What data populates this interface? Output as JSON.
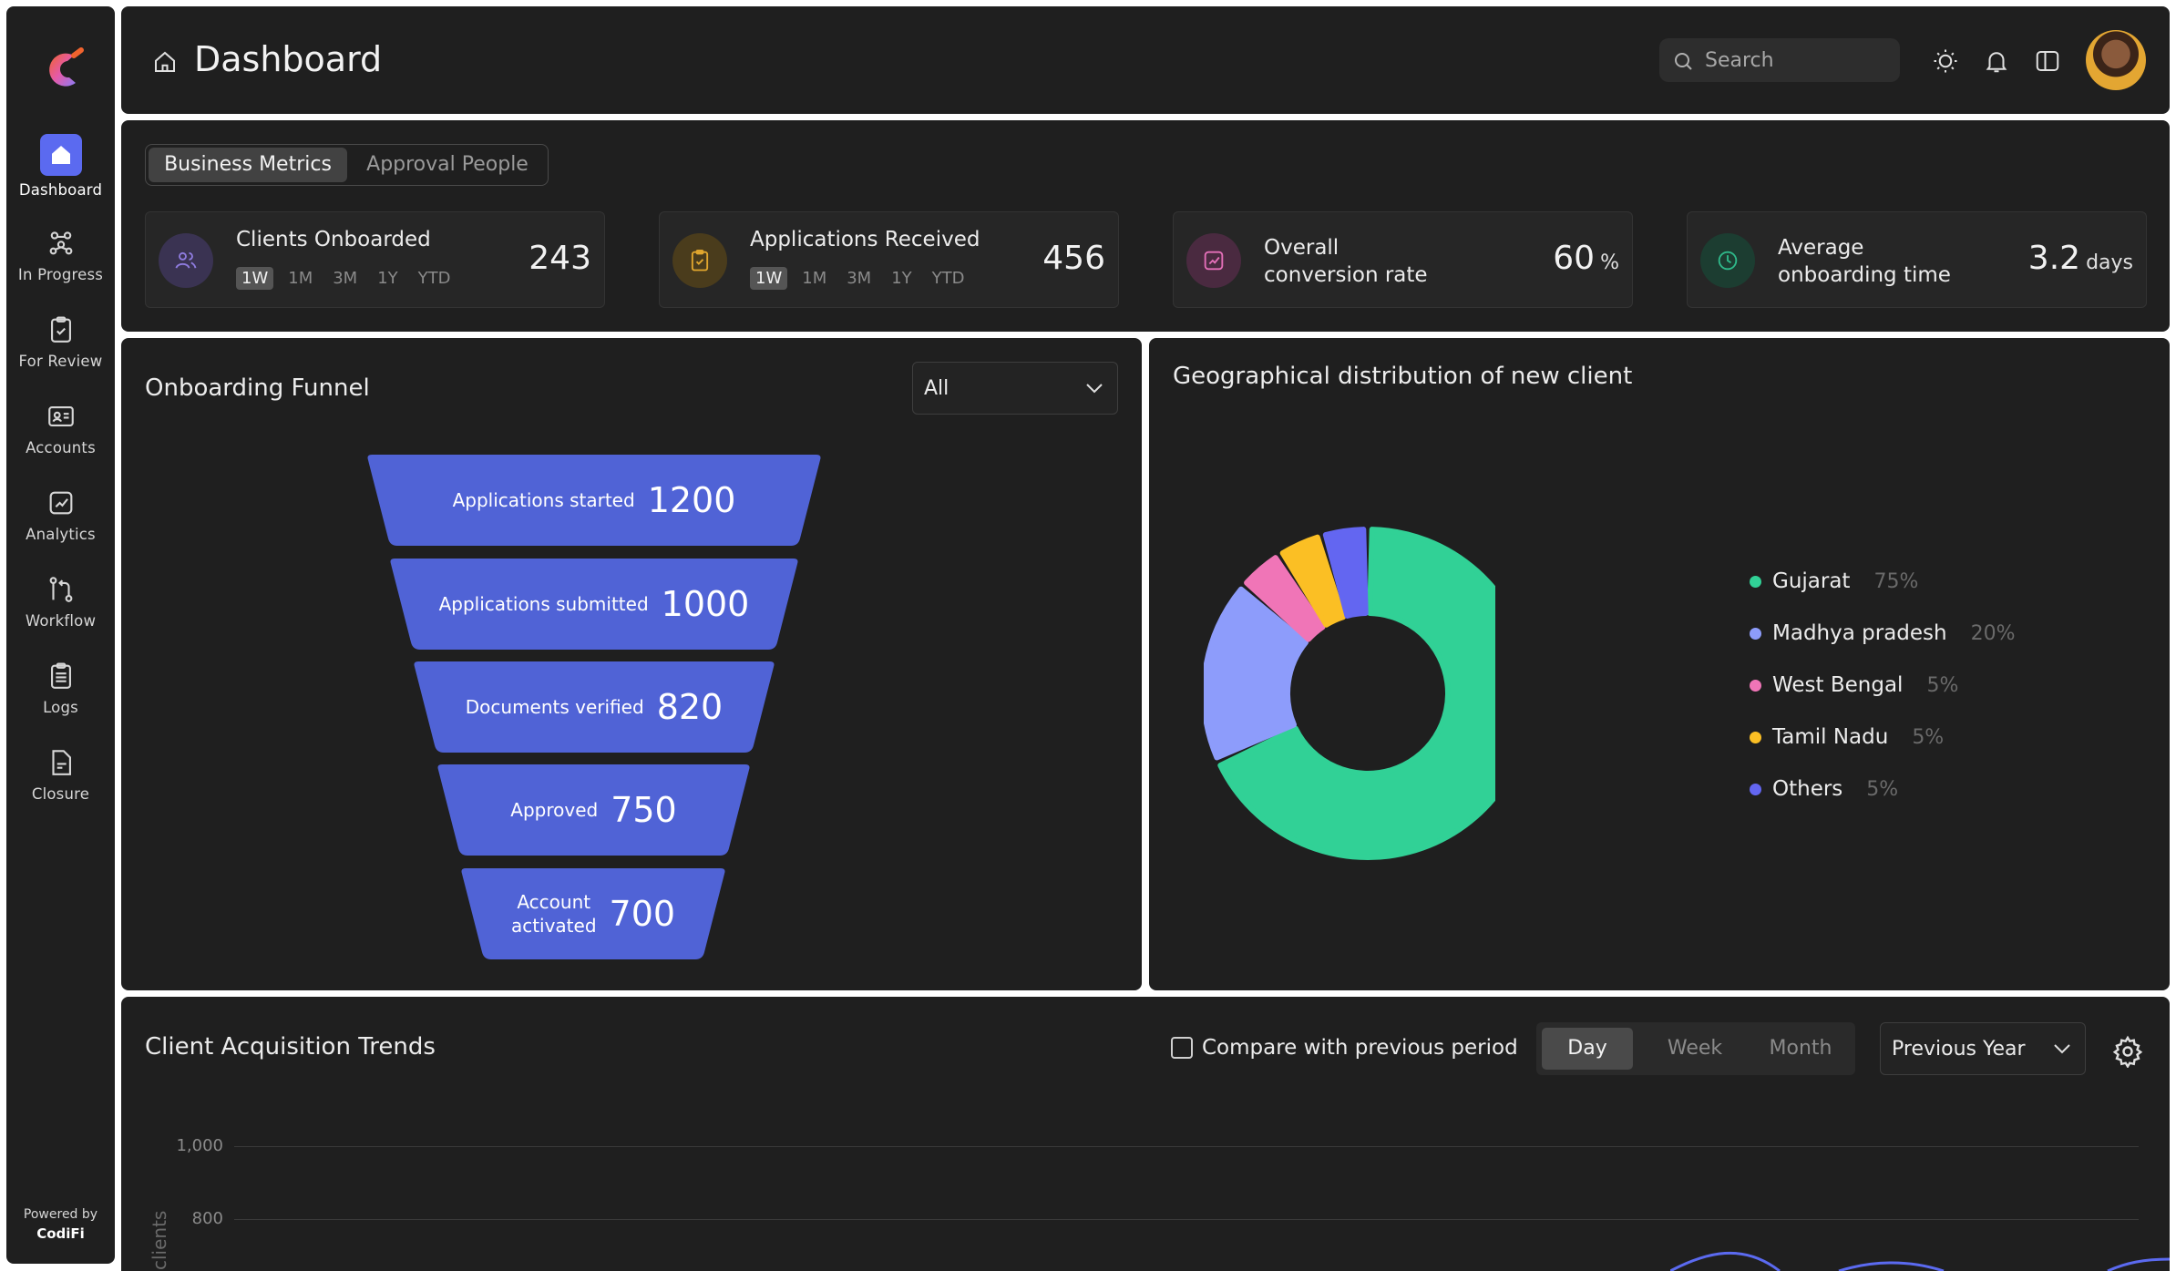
{
  "brand": {
    "powered_by": "Powered by",
    "company": "CodiFi"
  },
  "sidebar": {
    "items": [
      {
        "label": "Dashboard",
        "icon": "home-icon",
        "active": true
      },
      {
        "label": "In Progress",
        "icon": "users-network-icon"
      },
      {
        "label": "For Review",
        "icon": "clipboard-check-icon"
      },
      {
        "label": "Accounts",
        "icon": "id-card-icon"
      },
      {
        "label": "Analytics",
        "icon": "chart-icon"
      },
      {
        "label": "Workflow",
        "icon": "git-pull-icon"
      },
      {
        "label": "Logs",
        "icon": "clipboard-list-icon"
      },
      {
        "label": "Closure",
        "icon": "file-icon"
      }
    ]
  },
  "header": {
    "title": "Dashboard",
    "search_placeholder": "Search"
  },
  "metrics": {
    "tabs": [
      "Business Metrics",
      "Approval People"
    ],
    "periods": [
      "1W",
      "1M",
      "3M",
      "1Y",
      "YTD"
    ],
    "cards": [
      {
        "title": "Clients Onboarded",
        "value": "243",
        "icon": "users-icon",
        "color": "#7f6bd6"
      },
      {
        "title": "Applications Received",
        "value": "456",
        "icon": "clipboard-icon",
        "color": "#e2a72e"
      },
      {
        "title_line1": "Overall",
        "title_line2": "conversion rate",
        "value": "60",
        "unit": "%",
        "icon": "trend-icon",
        "color": "#e46fb8"
      },
      {
        "title_line1": "Average",
        "title_line2": "onboarding time",
        "value": "3.2",
        "unit": "days",
        "icon": "clock-icon",
        "color": "#2fb98a"
      }
    ]
  },
  "funnel": {
    "title": "Onboarding Funnel",
    "filter": "All",
    "stages": [
      {
        "label": "Applications started",
        "value": "1200"
      },
      {
        "label": "Applications submitted",
        "value": "1000"
      },
      {
        "label": "Documents verified",
        "value": "820"
      },
      {
        "label": "Approved",
        "value": "750"
      },
      {
        "label_line1": "Account",
        "label_line2": "activated",
        "value": "700"
      }
    ],
    "color": "#5063d6"
  },
  "geo": {
    "title": "Geographical distribution of new client",
    "chart_data": {
      "type": "pie",
      "categories": [
        "Gujarat",
        "Madhya pradesh",
        "West Bengal",
        "Tamil Nadu",
        "Others"
      ],
      "values": [
        75,
        20,
        5,
        5,
        5
      ],
      "labels": [
        "75%",
        "20%",
        "5%",
        "5%",
        "5%"
      ],
      "colors": [
        "#31d196",
        "#8d9cfb",
        "#f075b7",
        "#fbbf24",
        "#6366f1"
      ]
    }
  },
  "trends": {
    "title": "Client Acquisition Trends",
    "compare_label": "Compare with previous period",
    "segments": [
      "Day",
      "Week",
      "Month"
    ],
    "range": "Previous Year",
    "yticks": [
      "1,000",
      "800"
    ],
    "ylabel": "clients"
  }
}
